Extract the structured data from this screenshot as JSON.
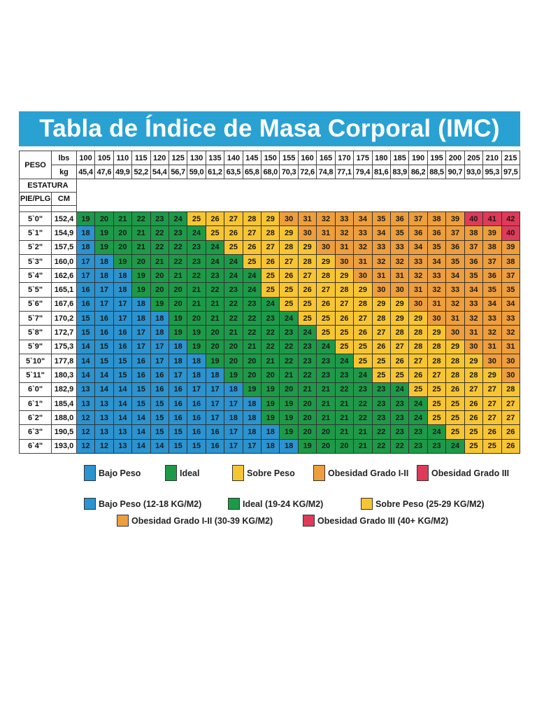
{
  "title": "Tabla de Índice de Masa Corporal (IMC)",
  "colors": {
    "title_bg": "#2aa1d3",
    "bajo": "#2a93d0",
    "ideal": "#1d9a48",
    "sobre": "#f8c532",
    "obes1": "#ee9e3c",
    "obes3": "#e03a59"
  },
  "headers": {
    "peso": "PESO",
    "lbs": "lbs",
    "kg": "kg",
    "estatura": "ESTATURA",
    "pieplg": "PIE/PLG",
    "cm": "CM"
  },
  "chart_data": {
    "type": "heatmap",
    "title": "Tabla de Índice de Masa Corporal (IMC)",
    "lbs": [
      "100",
      "105",
      "110",
      "115",
      "120",
      "125",
      "130",
      "135",
      "140",
      "145",
      "150",
      "155",
      "160",
      "165",
      "170",
      "175",
      "180",
      "185",
      "190",
      "195",
      "200",
      "205",
      "210",
      "215"
    ],
    "kg": [
      "45,4",
      "47,6",
      "49,9",
      "52,2",
      "54,4",
      "56,7",
      "59,0",
      "61,2",
      "63,5",
      "65,8",
      "68,0",
      "70,3",
      "72,6",
      "74,8",
      "77,1",
      "79,4",
      "81,6",
      "83,9",
      "86,2",
      "88,5",
      "90,7",
      "93,0",
      "95,3",
      "97,5"
    ],
    "rows": [
      {
        "ft": "5`0\"",
        "cm": "152,4",
        "values": [
          19,
          20,
          21,
          22,
          23,
          24,
          25,
          26,
          27,
          28,
          29,
          30,
          31,
          32,
          33,
          34,
          35,
          36,
          37,
          38,
          39,
          40,
          41,
          42
        ]
      },
      {
        "ft": "5`1\"",
        "cm": "154,9",
        "values": [
          18,
          19,
          20,
          21,
          22,
          23,
          24,
          25,
          26,
          27,
          28,
          29,
          30,
          31,
          32,
          33,
          34,
          35,
          36,
          36,
          37,
          38,
          39,
          40
        ]
      },
      {
        "ft": "5`2\"",
        "cm": "157,5",
        "values": [
          18,
          19,
          20,
          21,
          22,
          22,
          23,
          24,
          25,
          26,
          27,
          28,
          29,
          30,
          31,
          32,
          33,
          33,
          34,
          35,
          36,
          37,
          38,
          39
        ]
      },
      {
        "ft": "5`3\"",
        "cm": "160,0",
        "values": [
          17,
          18,
          19,
          20,
          21,
          22,
          23,
          24,
          24,
          25,
          26,
          27,
          28,
          29,
          30,
          31,
          32,
          32,
          33,
          34,
          35,
          36,
          37,
          38
        ]
      },
      {
        "ft": "5`4\"",
        "cm": "162,6",
        "values": [
          17,
          18,
          18,
          19,
          20,
          21,
          22,
          23,
          24,
          24,
          25,
          26,
          27,
          28,
          29,
          30,
          31,
          31,
          32,
          33,
          34,
          35,
          36,
          37
        ]
      },
      {
        "ft": "5`5\"",
        "cm": "165,1",
        "values": [
          16,
          17,
          18,
          19,
          20,
          20,
          21,
          22,
          23,
          24,
          25,
          25,
          26,
          27,
          28,
          29,
          30,
          30,
          31,
          32,
          33,
          34,
          35,
          35
        ]
      },
      {
        "ft": "5`6\"",
        "cm": "167,6",
        "values": [
          16,
          17,
          17,
          18,
          19,
          20,
          21,
          21,
          22,
          23,
          24,
          25,
          25,
          26,
          27,
          28,
          29,
          29,
          30,
          31,
          32,
          33,
          34,
          34
        ]
      },
      {
        "ft": "5`7\"",
        "cm": "170,2",
        "values": [
          15,
          16,
          17,
          18,
          18,
          19,
          20,
          21,
          22,
          22,
          23,
          24,
          25,
          25,
          26,
          27,
          28,
          29,
          29,
          30,
          31,
          32,
          33,
          33
        ]
      },
      {
        "ft": "5`8\"",
        "cm": "172,7",
        "values": [
          15,
          16,
          16,
          17,
          18,
          19,
          19,
          20,
          21,
          22,
          22,
          23,
          24,
          25,
          25,
          26,
          27,
          28,
          28,
          29,
          30,
          31,
          32,
          32
        ]
      },
      {
        "ft": "5`9\"",
        "cm": "175,3",
        "values": [
          14,
          15,
          16,
          17,
          17,
          18,
          19,
          20,
          20,
          21,
          22,
          22,
          23,
          24,
          25,
          25,
          26,
          27,
          28,
          28,
          29,
          30,
          31,
          31
        ]
      },
      {
        "ft": "5`10\"",
        "cm": "177,8",
        "values": [
          14,
          15,
          15,
          16,
          17,
          18,
          18,
          19,
          20,
          20,
          21,
          22,
          23,
          23,
          24,
          25,
          25,
          26,
          27,
          28,
          28,
          29,
          30,
          30
        ]
      },
      {
        "ft": "5`11\"",
        "cm": "180,3",
        "values": [
          14,
          14,
          15,
          16,
          16,
          17,
          18,
          18,
          19,
          20,
          20,
          21,
          22,
          23,
          23,
          24,
          25,
          25,
          26,
          27,
          28,
          28,
          29,
          30
        ]
      },
      {
        "ft": "6`0\"",
        "cm": "182,9",
        "values": [
          13,
          14,
          14,
          15,
          16,
          16,
          17,
          17,
          18,
          19,
          19,
          20,
          21,
          21,
          22,
          23,
          23,
          24,
          25,
          25,
          26,
          27,
          27,
          28
        ]
      },
      {
        "ft": "6`1\"",
        "cm": "185,4",
        "values": [
          13,
          13,
          14,
          15,
          15,
          16,
          16,
          17,
          17,
          18,
          19,
          19,
          20,
          21,
          21,
          22,
          23,
          23,
          24,
          25,
          25,
          26,
          27,
          27
        ]
      },
      {
        "ft": "6`2\"",
        "cm": "188,0",
        "values": [
          12,
          13,
          14,
          14,
          15,
          16,
          16,
          17,
          18,
          18,
          19,
          19,
          20,
          21,
          21,
          22,
          23,
          23,
          24,
          25,
          25,
          26,
          27,
          27
        ]
      },
      {
        "ft": "6`3\"",
        "cm": "190,5",
        "values": [
          12,
          13,
          13,
          14,
          15,
          15,
          16,
          16,
          17,
          18,
          18,
          19,
          20,
          20,
          21,
          21,
          22,
          23,
          23,
          24,
          25,
          25,
          26,
          26
        ]
      },
      {
        "ft": "6`4\"",
        "cm": "193,0",
        "values": [
          12,
          12,
          13,
          14,
          14,
          15,
          15,
          16,
          17,
          17,
          18,
          18,
          19,
          20,
          20,
          21,
          22,
          22,
          23,
          23,
          24,
          25,
          25,
          26
        ]
      }
    ],
    "categories": [
      {
        "key": "bajo",
        "min": 0,
        "max": 18
      },
      {
        "key": "ideal",
        "min": 19,
        "max": 24
      },
      {
        "key": "sobre",
        "min": 25,
        "max": 29
      },
      {
        "key": "obes1",
        "min": 30,
        "max": 39
      },
      {
        "key": "obes3",
        "min": 40,
        "max": 99
      }
    ]
  },
  "legend_short": [
    {
      "key": "bajo",
      "label": "Bajo Peso"
    },
    {
      "key": "ideal",
      "label": "Ideal"
    },
    {
      "key": "sobre",
      "label": "Sobre Peso"
    },
    {
      "key": "obes1",
      "label": "Obesidad Grado I-II"
    },
    {
      "key": "obes3",
      "label": "Obesidad Grado III"
    }
  ],
  "legend_long": [
    {
      "key": "bajo",
      "label": "Bajo Peso (12-18 KG/M2)"
    },
    {
      "key": "ideal",
      "label": "Ideal (19-24 KG/M2)"
    },
    {
      "key": "sobre",
      "label": "Sobre Peso (25-29 KG/M2)"
    },
    {
      "key": "obes1",
      "label": "Obesidad Grado I-II (30-39 KG/M2)"
    },
    {
      "key": "obes3",
      "label": "Obesidad Grado III (40+ KG/M2)"
    }
  ]
}
